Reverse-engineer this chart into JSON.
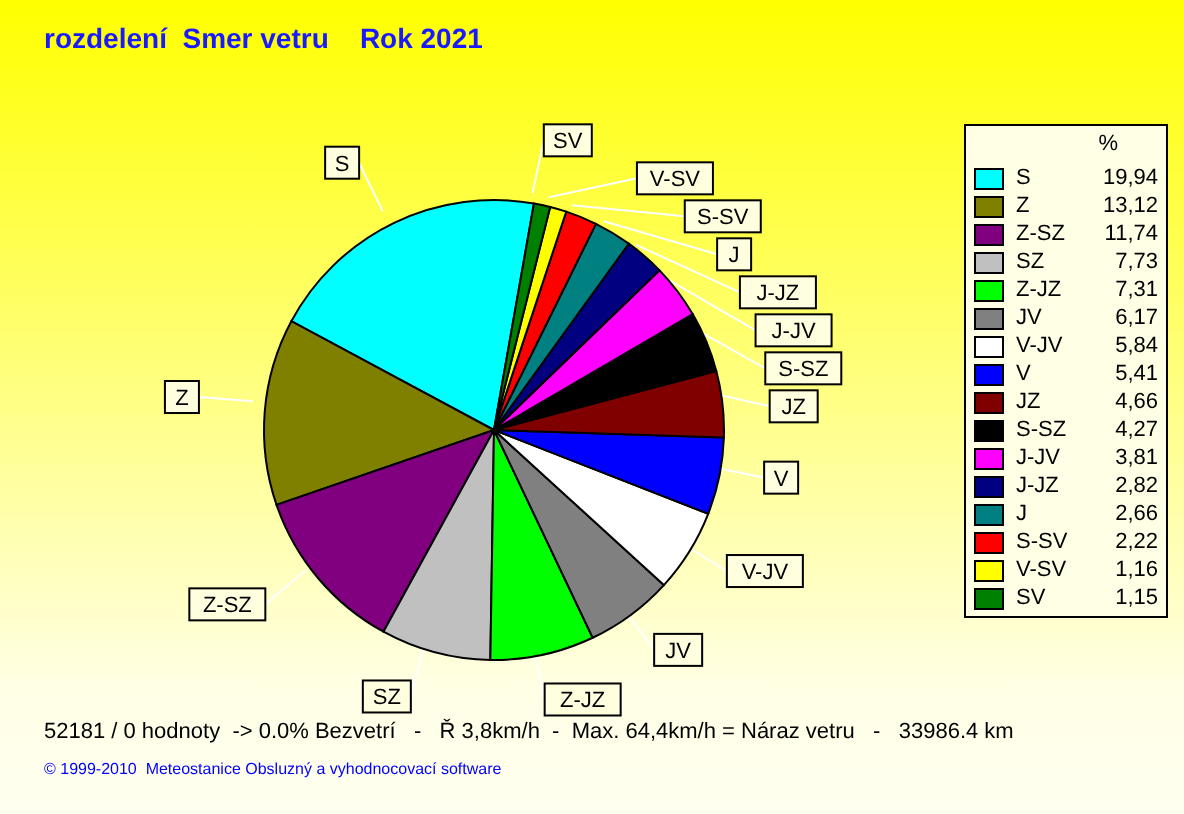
{
  "chart_data": {
    "type": "pie",
    "title": "rozdelení  Smer vetru    Rok 2021",
    "legend_title": "%",
    "legend": "right",
    "categories": [
      "S",
      "Z",
      "Z-SZ",
      "SZ",
      "Z-JZ",
      "JV",
      "V-JV",
      "V",
      "JZ",
      "S-SZ",
      "J-JV",
      "J-JZ",
      "J",
      "S-SV",
      "V-SV",
      "SV"
    ],
    "values": [
      19.94,
      13.12,
      11.74,
      7.73,
      7.31,
      6.17,
      5.84,
      5.41,
      4.66,
      4.27,
      3.81,
      2.82,
      2.66,
      2.22,
      1.16,
      1.15
    ],
    "value_labels": [
      "19,94",
      "13,12",
      "11,74",
      "7,73",
      "7,31",
      "6,17",
      "5,84",
      "5,41",
      "4,66",
      "4,27",
      "3,81",
      "2,82",
      "2,66",
      "2,22",
      "1,16",
      "1,15"
    ],
    "colors": [
      "#00ffff",
      "#808000",
      "#800080",
      "#c0c0c0",
      "#00ff00",
      "#808080",
      "#ffffff",
      "#0000ff",
      "#800000",
      "#000000",
      "#ff00ff",
      "#000080",
      "#008080",
      "#ff0000",
      "#ffff00",
      "#008000"
    ],
    "annotations": [
      "52181 / 0 hodnoty  -> 0.0% Bezvetrí   -   Ř 3,8km/h  -  Max. 64,4km/h = Náraz vetru   -   33986.4 km",
      "© 1999-2010  Meteostanice Obsluzný a vyhodnocovací software"
    ]
  }
}
